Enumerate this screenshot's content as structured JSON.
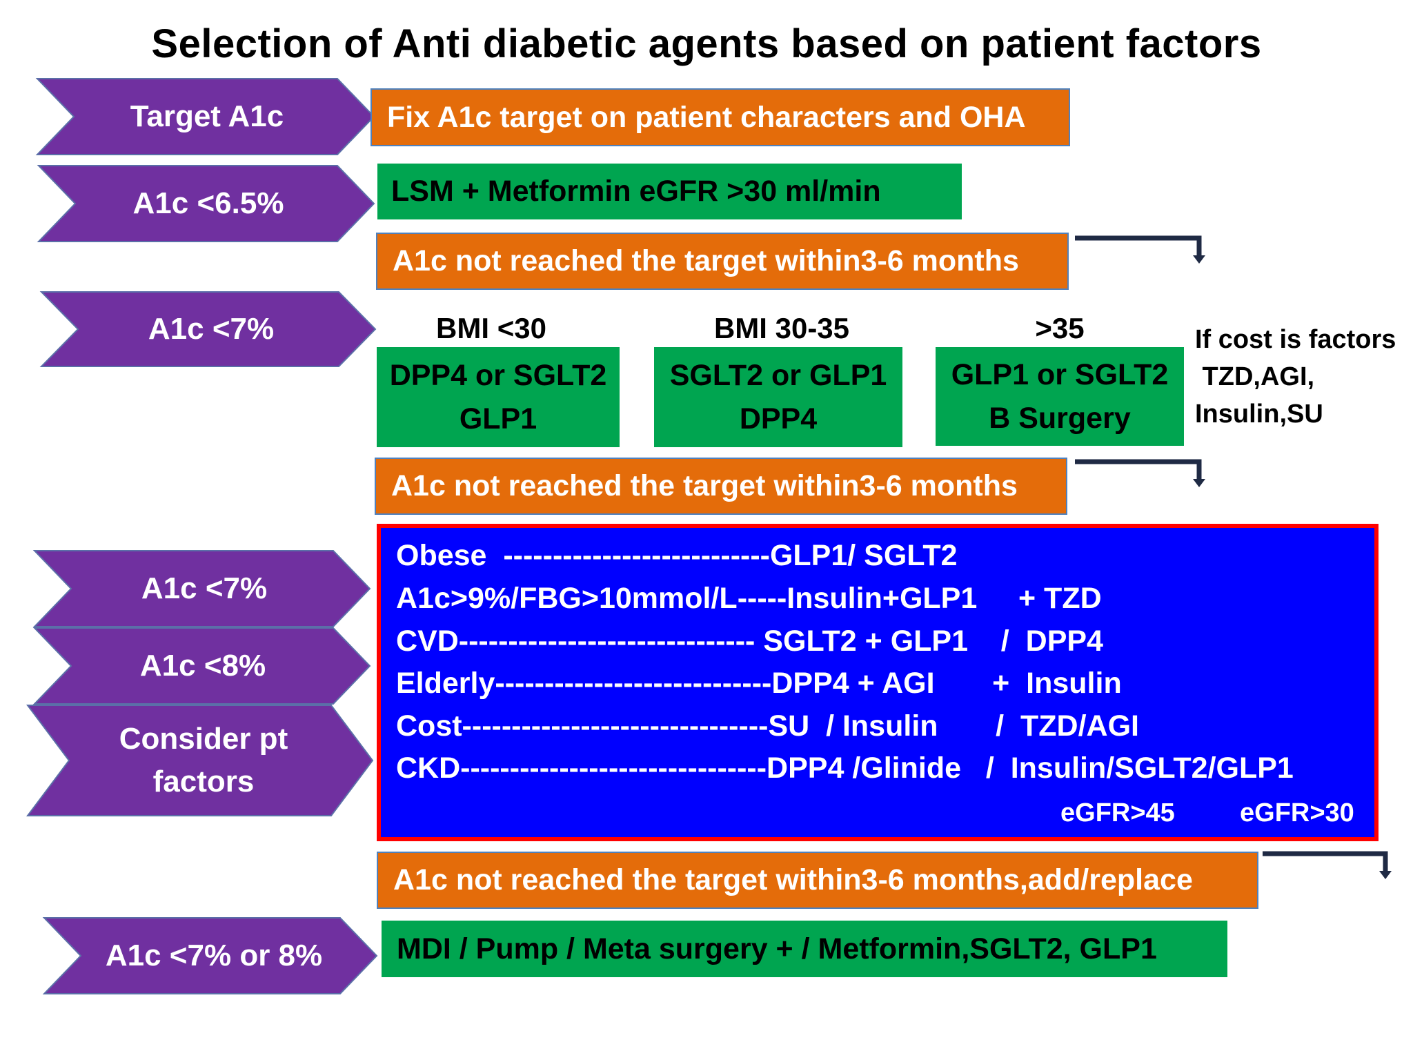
{
  "title": "Selection of Anti diabetic agents based on patient factors",
  "colors": {
    "chevron": "#7030a0",
    "orange_box": "#e46c0a",
    "green_box": "#00a550",
    "blue_box": "#0000ff",
    "blue_box_border": "#ff0000"
  },
  "chevrons": [
    {
      "label": "Target A1c"
    },
    {
      "label": "A1c <6.5%"
    },
    {
      "label": "A1c <7%"
    },
    {
      "label": "A1c <7%"
    },
    {
      "label": "A1c <8%"
    },
    {
      "label": "Consider pt factors"
    },
    {
      "label": "A1c <7% or 8%"
    }
  ],
  "step1": {
    "text": "Fix A1c target on patient characters and OHA"
  },
  "step2": {
    "text": "LSM + Metformin     eGFR >30 ml/min"
  },
  "not_reached_1": {
    "text": "A1c not reached the target within3-6 months"
  },
  "bmi_groups": [
    {
      "header": "BMI <30",
      "line1": "DPP4 or SGLT2",
      "line2": "GLP1"
    },
    {
      "header": "BMI 30-35",
      "line1": "SGLT2 or GLP1",
      "line2": "DPP4"
    },
    {
      "header": ">35",
      "line1": "GLP1 or SGLT2",
      "line2": "B Surgery"
    }
  ],
  "cost_note": {
    "line1": "If cost is factors",
    "line2": " TZD,AGI,",
    "line3": "Insulin,SU"
  },
  "not_reached_2": {
    "text": "A1c not reached the target within3-6 months"
  },
  "factor_rows": [
    {
      "text": "Obese  ---------------------------GLP1/ SGLT2"
    },
    {
      "text": "A1c>9%/FBG>10mmol/L-----Insulin+GLP1     + TZD"
    },
    {
      "text": "CVD------------------------------ SGLT2 + GLP1    /  DPP4"
    },
    {
      "text": "Elderly----------------------------DPP4 + AGI       +  Insulin"
    },
    {
      "text": "Cost-------------------------------SU  / Insulin       /  TZD/AGI"
    },
    {
      "text": "CKD-------------------------------DPP4 /Glinide   /  Insulin/SGLT2/GLP1"
    }
  ],
  "egfr_notes": {
    "left": "eGFR>45",
    "right": "eGFR>30"
  },
  "not_reached_3": {
    "text": "A1c not reached the target within3-6 months,add/replace"
  },
  "final_step": {
    "text": "MDI / Pump / Meta surgery + / Metformin,SGLT2, GLP1"
  }
}
